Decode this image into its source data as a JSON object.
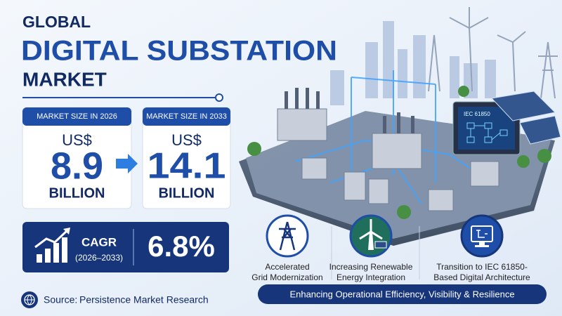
{
  "header": {
    "kicker": "GLOBAL",
    "title": "DIGITAL SUBSTATION",
    "subtitle": "MARKET"
  },
  "market_sizes": [
    {
      "label": "MARKET SIZE IN 2026",
      "currency": "US$",
      "value": "8.9",
      "unit": "BILLION"
    },
    {
      "label": "MARKET SIZE IN 2033",
      "currency": "US$",
      "value": "14.1",
      "unit": "BILLION"
    }
  ],
  "cagr": {
    "label": "CAGR",
    "period": "(2026–2033)",
    "value": "6.8%"
  },
  "source": {
    "label": "Source:",
    "name": "Persistence Market Research"
  },
  "screen_label": "IEC 61850",
  "drivers": [
    {
      "lines": [
        "Accelerated",
        "Grid Modernization"
      ]
    },
    {
      "lines": [
        "Increasing Renewable",
        "Energy Integration"
      ]
    },
    {
      "lines": [
        "Transition to IEC 61850-",
        "Based Digital Architecture"
      ]
    }
  ],
  "banner": "Enhancing Operational Efficiency, Visibility & Resilience"
}
